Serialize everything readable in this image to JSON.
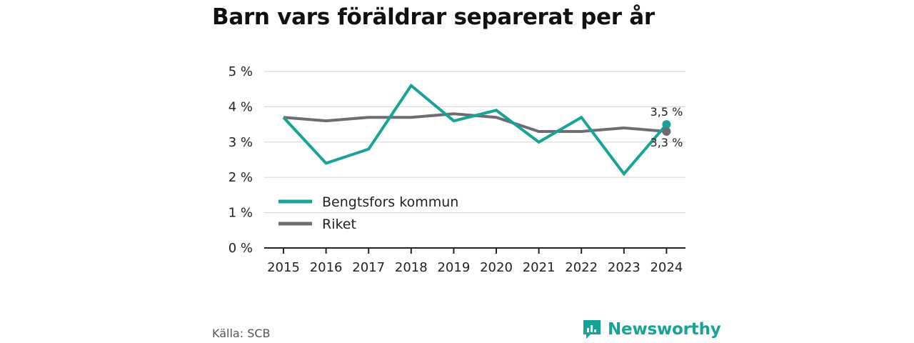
{
  "title": "Barn vars föräldrar separerat per år",
  "source": "Källa: SCB",
  "brand": {
    "name": "Newsworthy",
    "icon": "newsworthy-logo-icon",
    "color": "#17a398"
  },
  "colors": {
    "kommun": "#17a398",
    "riket": "#6e6b73",
    "grid": "#d9d9d9",
    "axis": "#222222"
  },
  "chart_data": {
    "type": "line",
    "x": [
      "2015",
      "2016",
      "2017",
      "2018",
      "2019",
      "2020",
      "2021",
      "2022",
      "2023",
      "2024"
    ],
    "series": [
      {
        "name": "Bengtsfors kommun",
        "values": [
          3.7,
          2.4,
          2.8,
          4.6,
          3.6,
          3.9,
          3.0,
          3.7,
          2.1,
          3.5
        ],
        "end_label": "3,5 %"
      },
      {
        "name": "Riket",
        "values": [
          3.7,
          3.6,
          3.7,
          3.7,
          3.8,
          3.7,
          3.3,
          3.3,
          3.4,
          3.3
        ],
        "end_label": "3,3 %"
      }
    ],
    "y_ticks": [
      {
        "value": 0,
        "label": "0 %"
      },
      {
        "value": 1,
        "label": "1 %"
      },
      {
        "value": 2,
        "label": "2 %"
      },
      {
        "value": 3,
        "label": "3 %"
      },
      {
        "value": 4,
        "label": "4 %"
      },
      {
        "value": 5,
        "label": "5 %"
      }
    ],
    "ylim": [
      0,
      5
    ],
    "grid": true,
    "legend_position": "bottom-left"
  }
}
